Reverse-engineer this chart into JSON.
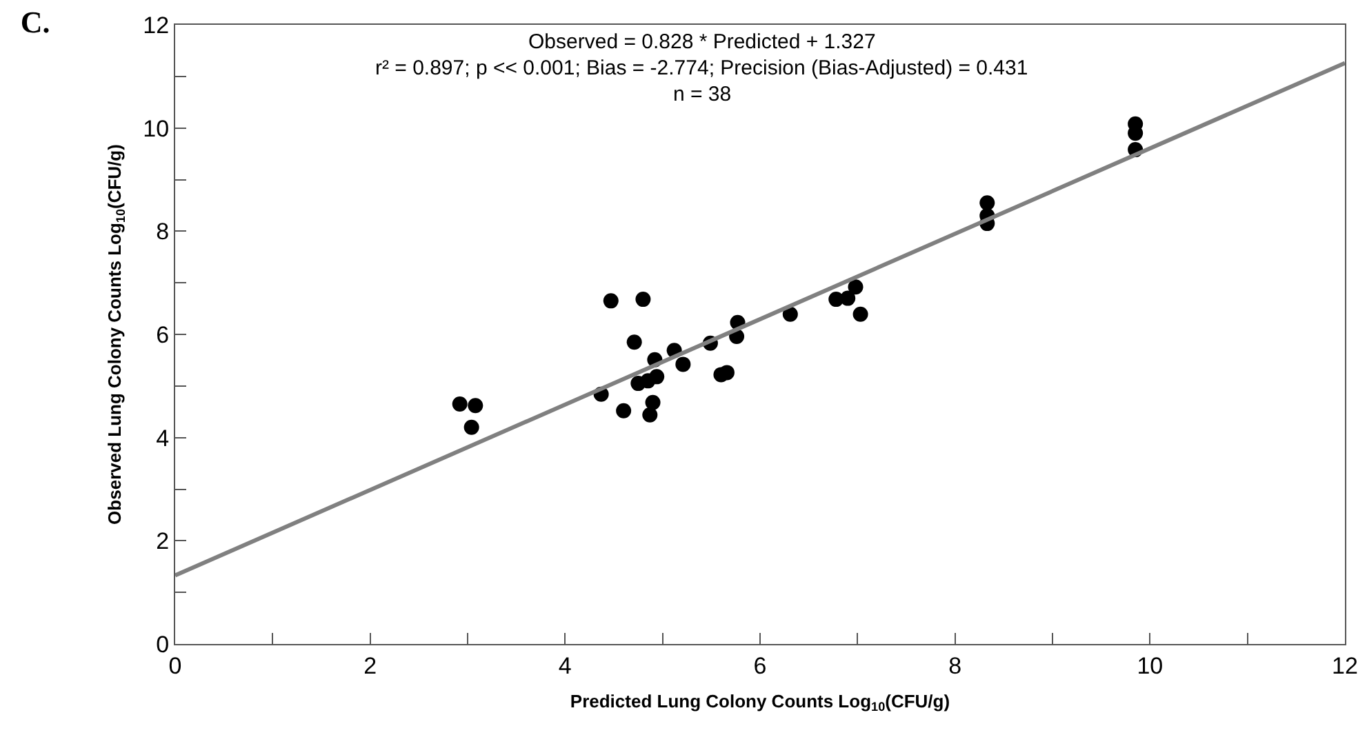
{
  "chart_data": {
    "type": "scatter",
    "title": "C.",
    "xlabel": "Predicted Lung Colony Counts Log$_{10}$(CFU/g)",
    "ylabel": "Observed Lung Colony Counts Log$_{10}$(CFU/g)",
    "annotations": [
      "Observed = 0.828 * Predicted + 1.327",
      "r² = 0.897; p << 0.001; Bias = -2.774; Precision (Bias-Adjusted) = 0.431",
      "n = 38"
    ],
    "series": [
      {
        "type": "scatter",
        "color": "#000000",
        "x": [
          2.92,
          3.08,
          3.04,
          4.37,
          4.47,
          4.8,
          4.71,
          4.6,
          4.92,
          4.94,
          4.9,
          4.87,
          5.12,
          5.21,
          5.49,
          5.66,
          5.6,
          5.76,
          5.77,
          6.31,
          6.78,
          6.98,
          7.03,
          6.9,
          4.75,
          4.85,
          8.33,
          8.33,
          8.33,
          9.85,
          9.85,
          9.85
        ],
        "values": [
          4.65,
          4.62,
          4.2,
          4.84,
          6.65,
          6.68,
          5.85,
          4.52,
          5.51,
          5.18,
          4.68,
          4.44,
          5.69,
          5.42,
          5.83,
          5.26,
          5.22,
          5.96,
          6.23,
          6.39,
          6.68,
          6.92,
          6.39,
          6.7,
          5.05,
          5.1,
          8.55,
          8.3,
          8.15,
          10.08,
          9.9,
          9.58
        ]
      },
      {
        "type": "line",
        "color": "#808080",
        "marker": "none",
        "x": [
          0,
          12
        ],
        "values": [
          1.33,
          11.26
        ]
      }
    ],
    "xlim": [
      0,
      12
    ],
    "ylim": [
      0,
      12
    ],
    "xticks": [
      0,
      {
        "value": 1,
        "label": null
      },
      2,
      {
        "value": 3,
        "label": null
      },
      4,
      {
        "value": 5,
        "label": null
      },
      6,
      {
        "value": 7,
        "label": null
      },
      8,
      {
        "value": 9,
        "label": null
      },
      10,
      {
        "value": 11,
        "label": null
      },
      12
    ],
    "yticks": [
      0,
      {
        "value": 1,
        "label": null
      },
      2,
      {
        "value": 3,
        "label": null
      },
      4,
      {
        "value": 5,
        "label": null
      },
      6,
      {
        "value": 7,
        "label": null
      },
      8,
      {
        "value": 9,
        "label": null
      },
      10,
      {
        "value": 11,
        "label": null
      },
      12
    ],
    "grid": false,
    "marker": "circle",
    "line_style": "solid"
  }
}
